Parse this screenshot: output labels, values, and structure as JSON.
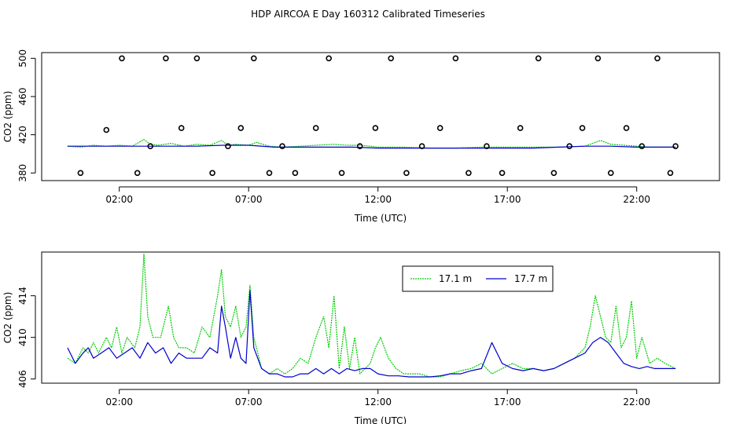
{
  "figure": {
    "title": "HDP AIRCOA E  Day 160312  Calibrated Timeseries"
  },
  "chart_data": [
    {
      "type": "scatter",
      "panel": "top",
      "xlabel": "Time (UTC)",
      "ylabel": "CO2 (ppm)",
      "x_unit": "hours UTC",
      "xlim": [
        -1.0,
        25.2
      ],
      "ylim": [
        372,
        506
      ],
      "x_ticks": [
        2,
        7,
        12,
        17,
        22
      ],
      "x_tick_labels": [
        "02:00",
        "07:00",
        "12:00",
        "17:00",
        "22:00"
      ],
      "y_ticks": [
        380,
        420,
        460,
        500
      ],
      "y_tick_labels": [
        "380",
        "420",
        "460",
        "500"
      ],
      "series": [
        {
          "name": "",
          "style": "line",
          "color": "#00cc00",
          "x": [
            0,
            0.5,
            1.0,
            1.5,
            2.0,
            2.5,
            2.95,
            3.2,
            3.5,
            4.0,
            4.5,
            5.0,
            5.5,
            5.95,
            6.2,
            6.5,
            7.0,
            7.3,
            7.8,
            8.3,
            9.0,
            9.6,
            10.3,
            10.8,
            11.3,
            11.7,
            12.0,
            13.0,
            14.0,
            15.0,
            16.0,
            17.0,
            18.0,
            19.0,
            20.0,
            20.6,
            21.0,
            21.5,
            22.0,
            22.5,
            23.0,
            23.5
          ],
          "y": [
            408,
            407,
            409,
            408,
            409,
            408,
            415,
            410,
            409,
            411,
            408,
            410,
            409,
            414,
            409,
            410,
            409,
            412,
            408,
            407,
            408,
            409,
            410,
            409,
            409,
            408,
            407,
            407,
            406,
            406,
            407,
            407,
            407,
            407,
            408,
            414,
            410,
            409,
            408,
            407,
            407,
            407
          ]
        },
        {
          "name": "",
          "style": "line",
          "color": "#0000cc",
          "x": [
            0,
            1,
            2,
            3,
            4,
            5,
            6,
            7,
            8,
            9,
            10,
            11,
            12,
            13,
            14,
            15,
            16,
            17,
            18,
            19,
            20,
            21,
            22,
            23,
            23.5
          ],
          "y": [
            408,
            408,
            408,
            408,
            408,
            408,
            409,
            409,
            407,
            407,
            407,
            407,
            406,
            406,
            406,
            406,
            406,
            406,
            406,
            407,
            408,
            408,
            407,
            407,
            407
          ]
        },
        {
          "name": "",
          "style": "points",
          "color": "#000000",
          "x": [
            0.5,
            1.5,
            2.1,
            2.7,
            3.2,
            3.8,
            4.4,
            5.0,
            5.6,
            6.2,
            6.7,
            7.2,
            7.8,
            8.3,
            8.8,
            9.6,
            10.1,
            10.6,
            11.3,
            11.9,
            12.5,
            13.1,
            13.7,
            14.4,
            15.0,
            15.5,
            16.2,
            16.8,
            17.5,
            18.2,
            18.8,
            19.4,
            19.9,
            20.5,
            21.0,
            21.6,
            22.2,
            22.8,
            23.3,
            23.5
          ],
          "y": [
            380,
            425,
            500,
            380,
            408,
            500,
            427,
            500,
            380,
            408,
            427,
            500,
            380,
            408,
            380,
            427,
            500,
            380,
            408,
            427,
            500,
            380,
            408,
            427,
            500,
            380,
            408,
            380,
            427,
            500,
            380,
            408,
            427,
            500,
            380,
            427,
            408,
            500,
            380,
            408
          ]
        }
      ]
    },
    {
      "type": "line",
      "panel": "bottom",
      "xlabel": "Time (UTC)",
      "ylabel": "CO2 (ppm)",
      "x_unit": "hours UTC",
      "xlim": [
        -1.0,
        25.2
      ],
      "ylim": [
        405.6,
        418.2
      ],
      "x_ticks": [
        2,
        7,
        12,
        17,
        22
      ],
      "x_tick_labels": [
        "02:00",
        "07:00",
        "12:00",
        "17:00",
        "22:00"
      ],
      "y_ticks": [
        406,
        410,
        414
      ],
      "y_tick_labels": [
        "406",
        "410",
        "414"
      ],
      "legend": {
        "position": "top-right",
        "entries": [
          "17.1 m",
          "17.7 m"
        ]
      },
      "series": [
        {
          "name": "17.1 m",
          "color": "#00cc00",
          "x": [
            0,
            0.3,
            0.6,
            0.8,
            1.0,
            1.2,
            1.5,
            1.7,
            1.9,
            2.1,
            2.3,
            2.6,
            2.8,
            2.95,
            3.1,
            3.3,
            3.6,
            3.9,
            4.1,
            4.3,
            4.6,
            4.9,
            5.2,
            5.5,
            5.8,
            5.95,
            6.1,
            6.3,
            6.5,
            6.7,
            6.9,
            7.05,
            7.2,
            7.5,
            7.8,
            8.1,
            8.4,
            8.7,
            9.0,
            9.3,
            9.6,
            9.9,
            10.1,
            10.3,
            10.5,
            10.7,
            10.9,
            11.1,
            11.3,
            11.5,
            11.7,
            11.9,
            12.1,
            12.4,
            12.7,
            13.0,
            13.3,
            13.6,
            14.0,
            14.4,
            14.8,
            15.2,
            15.6,
            16.0,
            16.4,
            16.8,
            17.2,
            17.6,
            18.0,
            18.4,
            18.8,
            19.2,
            19.6,
            20.0,
            20.2,
            20.4,
            20.6,
            20.8,
            21.0,
            21.2,
            21.4,
            21.6,
            21.8,
            22.0,
            22.2,
            22.5,
            22.8,
            23.1,
            23.5
          ],
          "y": [
            408,
            407.5,
            409,
            408.5,
            409.5,
            408.5,
            410,
            409,
            411,
            408.5,
            410,
            409,
            411,
            418,
            412,
            410,
            410,
            413,
            410,
            409,
            409,
            408.5,
            411,
            410,
            414,
            416.5,
            412,
            411,
            413,
            410,
            411,
            415,
            410,
            407,
            406.5,
            407,
            406.5,
            407,
            408,
            407.5,
            410,
            412,
            409,
            414,
            407,
            411,
            407,
            410,
            406.5,
            407,
            407.5,
            409,
            410,
            408,
            407,
            406.5,
            406.5,
            406.5,
            406.2,
            406.2,
            406.5,
            406.8,
            407,
            407.5,
            406.5,
            407,
            407.5,
            407,
            407,
            406.8,
            407,
            407.5,
            408,
            409,
            411,
            414,
            412,
            410,
            409.5,
            413,
            409,
            410,
            413.5,
            408,
            410,
            407.5,
            408,
            407.5,
            407
          ]
        },
        {
          "name": "17.7 m",
          "color": "#0000cc",
          "x": [
            0,
            0.3,
            0.6,
            0.8,
            1.0,
            1.3,
            1.6,
            1.9,
            2.2,
            2.5,
            2.8,
            3.1,
            3.4,
            3.7,
            4.0,
            4.3,
            4.6,
            4.9,
            5.2,
            5.5,
            5.8,
            5.95,
            6.1,
            6.3,
            6.5,
            6.7,
            6.9,
            7.05,
            7.2,
            7.5,
            7.8,
            8.1,
            8.4,
            8.7,
            9.0,
            9.3,
            9.6,
            9.9,
            10.2,
            10.5,
            10.8,
            11.1,
            11.4,
            11.7,
            12.0,
            12.4,
            12.8,
            13.2,
            13.6,
            14.0,
            14.4,
            14.8,
            15.2,
            15.6,
            16.0,
            16.4,
            16.8,
            17.2,
            17.6,
            18.0,
            18.4,
            18.8,
            19.2,
            19.6,
            20.0,
            20.3,
            20.6,
            20.9,
            21.2,
            21.5,
            21.8,
            22.1,
            22.4,
            22.7,
            23.0,
            23.5
          ],
          "y": [
            409,
            407.5,
            408.5,
            409,
            408,
            408.5,
            409,
            408,
            408.5,
            409,
            408,
            409.5,
            408.5,
            409,
            407.5,
            408.5,
            408,
            408,
            408,
            409,
            408.5,
            413,
            411,
            408,
            410,
            408,
            407.5,
            414.5,
            409,
            407,
            406.5,
            406.5,
            406.2,
            406.2,
            406.5,
            406.5,
            407,
            406.5,
            407,
            406.5,
            407,
            406.8,
            407,
            407,
            406.5,
            406.3,
            406.3,
            406.2,
            406.2,
            406.2,
            406.3,
            406.5,
            406.5,
            406.8,
            407,
            409.5,
            407.5,
            407,
            406.8,
            407,
            406.8,
            407,
            407.5,
            408,
            408.5,
            409.5,
            410,
            409.5,
            408.5,
            407.5,
            407.2,
            407,
            407.2,
            407,
            407,
            407
          ]
        }
      ]
    }
  ]
}
